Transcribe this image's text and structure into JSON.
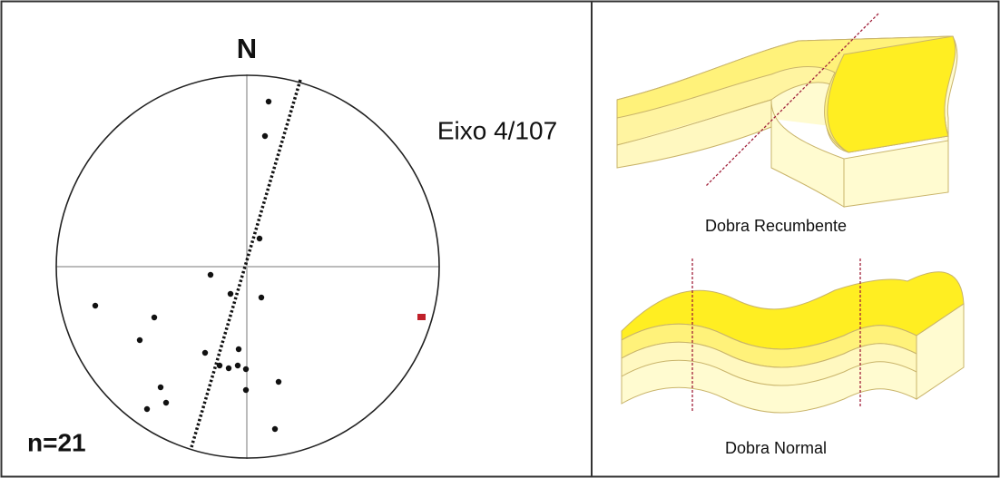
{
  "stereonet": {
    "north_label": "N",
    "axis_label": "Eixo 4/107",
    "count_label": "n=21"
  },
  "folds": [
    {
      "label": "Dobra Recumbente"
    },
    {
      "label": "Dobra Normal"
    }
  ]
}
